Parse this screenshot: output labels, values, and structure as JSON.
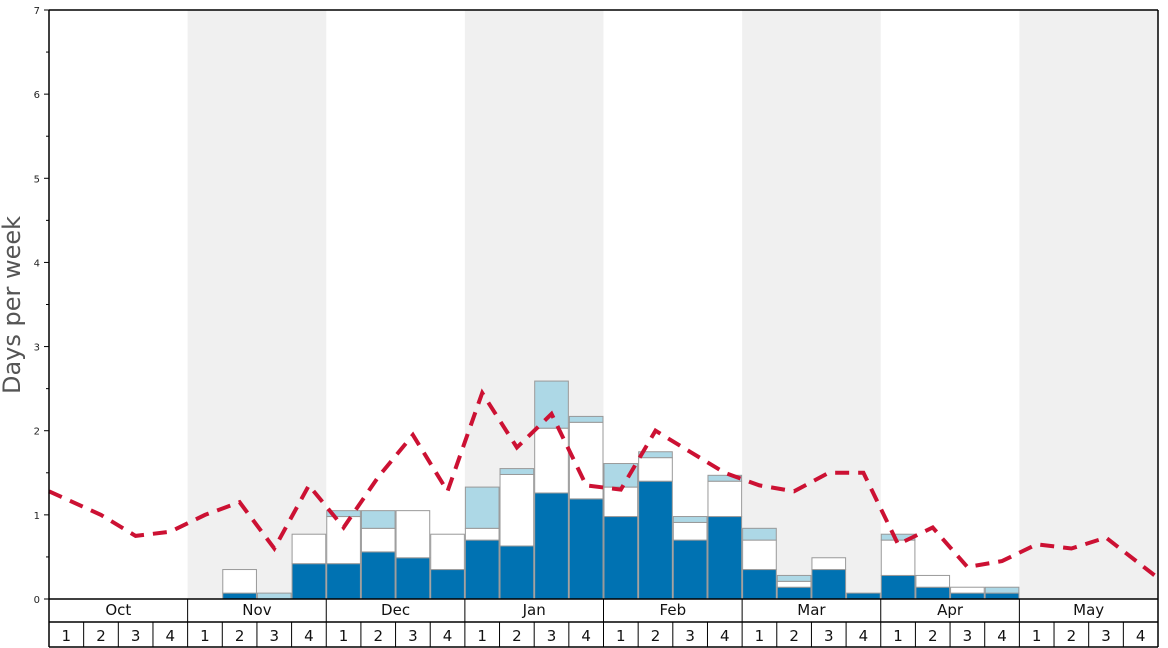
{
  "chart_data": {
    "type": "bar",
    "ylabel": "Days per week",
    "ylim": [
      0,
      7
    ],
    "y_ticks": [
      "0",
      "1",
      "2",
      "3",
      "4",
      "5",
      "6",
      "7"
    ],
    "months": [
      "Oct",
      "Nov",
      "Dec",
      "Jan",
      "Feb",
      "Mar",
      "Apr",
      "May"
    ],
    "week_labels": [
      "1",
      "2",
      "3",
      "4",
      "1",
      "2",
      "3",
      "4",
      "1",
      "2",
      "3",
      "4",
      "1",
      "2",
      "3",
      "4",
      "1",
      "2",
      "3",
      "4",
      "1",
      "2",
      "3",
      "4",
      "1",
      "2",
      "3",
      "4",
      "1",
      "2",
      "3",
      "4"
    ],
    "series": [
      {
        "color": "#0072b2",
        "values": [
          0,
          0,
          0,
          0,
          0,
          0.07,
          0,
          0.42,
          0.42,
          0.56,
          0.49,
          0.35,
          0.7,
          0.63,
          1.26,
          1.19,
          0.98,
          1.4,
          0.7,
          0.98,
          0.35,
          0.14,
          0.35,
          0.07,
          0.28,
          0.14,
          0.07,
          0.07,
          0,
          0,
          0,
          0
        ]
      },
      {
        "color": "#ffffff",
        "values": [
          0,
          0,
          0,
          0,
          0,
          0.28,
          0,
          0.35,
          0.56,
          0.28,
          0.56,
          0.42,
          0.14,
          0.85,
          0.77,
          0.91,
          0.35,
          0.28,
          0.21,
          0.42,
          0.35,
          0.07,
          0.14,
          0,
          0.42,
          0.14,
          0.07,
          0,
          0,
          0,
          0,
          0
        ]
      },
      {
        "color": "#add8e6",
        "values": [
          0,
          0,
          0,
          0,
          0,
          0,
          0.07,
          0,
          0.07,
          0.21,
          0,
          0,
          0.49,
          0.07,
          0.56,
          0.07,
          0.28,
          0.07,
          0.07,
          0.07,
          0.14,
          0.07,
          0,
          0,
          0.07,
          0,
          0,
          0.07,
          0,
          0,
          0,
          0
        ]
      }
    ],
    "line": {
      "color": "#cc1133",
      "style": "dashed",
      "values": [
        1.28,
        1.0,
        0.75,
        0.8,
        1.0,
        1.15,
        0.6,
        1.35,
        0.85,
        1.45,
        1.95,
        1.28,
        2.45,
        1.8,
        2.2,
        1.35,
        1.3,
        2.0,
        1.75,
        1.5,
        1.35,
        1.28,
        1.5,
        1.5,
        0.65,
        0.85,
        0.38,
        0.45,
        0.65,
        0.6,
        0.73,
        0.25
      ]
    },
    "shaded_months": [
      "Nov",
      "Jan",
      "Mar",
      "May"
    ],
    "shade_color": "#f0f0f0",
    "grid": false
  }
}
